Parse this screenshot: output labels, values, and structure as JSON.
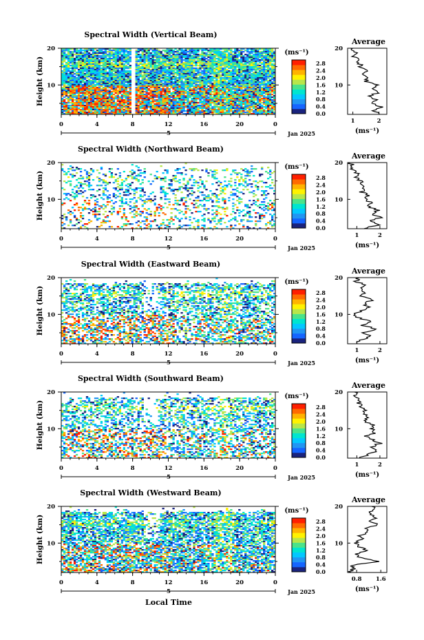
{
  "chart_data": {
    "type": "heatmap",
    "x_axis": {
      "label": "Local Time",
      "range": [
        0,
        24
      ],
      "ticks": [
        "0",
        "4",
        "8",
        "12",
        "16",
        "20",
        "0"
      ],
      "day_marker": "5",
      "month_label": "Jan 2025"
    },
    "y_axis": {
      "label": "Height (km)",
      "range": [
        2,
        20
      ],
      "ticks": [
        "10",
        "20"
      ]
    },
    "colorbar": {
      "unit": "(ms⁻¹)",
      "range": [
        0,
        3.0
      ],
      "ticks": [
        "0.0",
        "0.4",
        "0.8",
        "1.2",
        "1.6",
        "2.0",
        "2.4",
        "2.8"
      ],
      "colors": [
        "#1a237e",
        "#1565ff",
        "#2196f3",
        "#03c8ff",
        "#00e5d0",
        "#4be38a",
        "#b8e64a",
        "#fff200",
        "#ffb300",
        "#ff6a00",
        "#ff1f00"
      ]
    },
    "average_panel": {
      "title": "Average",
      "xlabel": "(ms⁻¹)"
    },
    "panels": [
      {
        "title": "Spectral Width (Vertical Beam)",
        "avg_xticks": [
          "1",
          "2"
        ],
        "avg_xlim": [
          0.8,
          2.3
        ],
        "average_profile": {
          "height": [
            2,
            3,
            4,
            5,
            6,
            7,
            8,
            9,
            10,
            11,
            12,
            13,
            14,
            15,
            16,
            17,
            18,
            19,
            20
          ],
          "value": [
            2.0,
            1.8,
            2.1,
            1.7,
            1.9,
            1.6,
            2.0,
            1.7,
            1.9,
            1.5,
            1.6,
            1.4,
            1.5,
            1.3,
            1.25,
            1.15,
            1.0,
            1.1,
            1.0
          ]
        }
      },
      {
        "title": "Spectral Width (Northward Beam)",
        "avg_xticks": [
          "1",
          "2"
        ],
        "avg_xlim": [
          0.6,
          2.3
        ],
        "average_profile": {
          "height": [
            2,
            3,
            4,
            5,
            6,
            7,
            8,
            9,
            10,
            11,
            12,
            13,
            14,
            15,
            16,
            17,
            18,
            19,
            20
          ],
          "value": [
            1.3,
            1.9,
            1.6,
            2.0,
            1.7,
            1.9,
            1.5,
            1.6,
            1.4,
            1.5,
            1.2,
            1.35,
            1.1,
            1.2,
            0.95,
            1.0,
            0.8,
            0.85,
            0.7
          ]
        }
      },
      {
        "title": "Spectral Width (Eastward Beam)",
        "avg_xticks": [
          "1",
          "2"
        ],
        "avg_xlim": [
          0.6,
          2.3
        ],
        "average_profile": {
          "height": [
            2,
            3,
            4,
            5,
            6,
            7,
            8,
            9,
            10,
            11,
            12,
            13,
            14,
            15,
            16,
            17,
            18,
            19,
            20
          ],
          "value": [
            1.0,
            1.1,
            1.6,
            1.3,
            1.9,
            1.2,
            1.6,
            1.1,
            0.9,
            1.2,
            1.5,
            1.3,
            1.7,
            1.2,
            1.4,
            1.1,
            1.3,
            0.95,
            1.1
          ]
        }
      },
      {
        "title": "Spectral Width (Southward Beam)",
        "avg_xticks": [
          "1",
          "2"
        ],
        "avg_xlim": [
          0.6,
          2.3
        ],
        "average_profile": {
          "height": [
            2,
            3,
            4,
            5,
            6,
            7,
            8,
            9,
            10,
            11,
            12,
            13,
            14,
            15,
            16,
            17,
            18,
            19,
            20
          ],
          "value": [
            1.1,
            1.5,
            1.9,
            1.6,
            2.0,
            1.7,
            1.4,
            1.8,
            1.6,
            1.7,
            1.4,
            1.5,
            1.3,
            1.35,
            1.2,
            1.1,
            1.0,
            0.95,
            0.9
          ]
        }
      },
      {
        "title": "Spectral Width (Westward Beam)",
        "avg_xticks": [
          "0.8",
          "1.6"
        ],
        "avg_xlim": [
          0.5,
          1.8
        ],
        "average_profile": {
          "height": [
            2,
            3,
            4,
            5,
            6,
            7,
            8,
            9,
            10,
            11,
            12,
            13,
            14,
            15,
            16,
            17,
            18,
            19,
            20
          ],
          "value": [
            0.6,
            0.7,
            0.65,
            1.5,
            0.95,
            0.8,
            1.1,
            0.9,
            0.75,
            1.0,
            0.9,
            1.2,
            1.05,
            1.5,
            1.3,
            1.45,
            1.2,
            1.4,
            1.3
          ]
        }
      }
    ]
  }
}
